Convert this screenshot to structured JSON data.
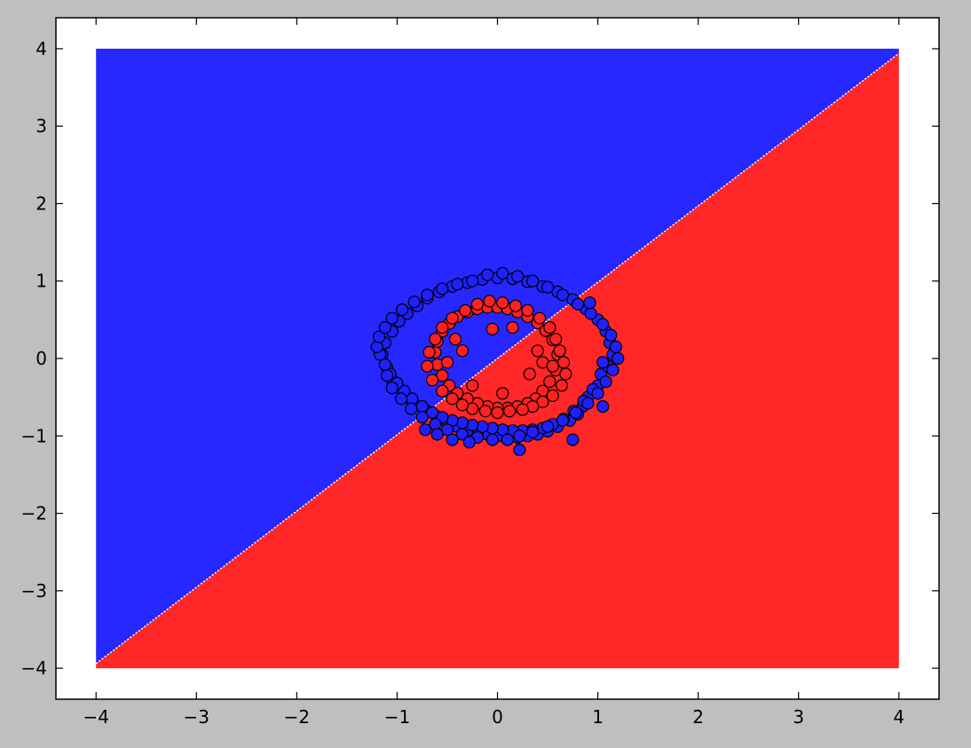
{
  "chart_data": {
    "type": "scatter",
    "title": "",
    "xlabel": "",
    "ylabel": "",
    "xlim": [
      -4.4,
      4.4
    ],
    "ylim": [
      -4.4,
      4.4
    ],
    "x_ticks": [
      -4,
      -3,
      -2,
      -1,
      0,
      1,
      2,
      3,
      4
    ],
    "y_ticks": [
      -4,
      -3,
      -2,
      -1,
      0,
      1,
      2,
      3,
      4
    ],
    "x_tick_labels": [
      "−4",
      "−3",
      "−2",
      "−1",
      "0",
      "1",
      "2",
      "3",
      "4"
    ],
    "y_tick_labels": [
      "−4",
      "−3",
      "−2",
      "−1",
      "0",
      "1",
      "2",
      "3",
      "4"
    ],
    "grid": false,
    "decision_region": {
      "extent": [
        -4,
        4,
        -4,
        4
      ],
      "boundary": {
        "slope": 0.985,
        "intercept": 0.0
      },
      "above_class": "blue",
      "below_class": "red"
    },
    "colors": {
      "blue_region": "#2727ff",
      "red_region": "#ff2727",
      "blue_point": "#2020ff",
      "red_point": "#ff2020",
      "point_edge": "#000000",
      "boundary": "#ffffff",
      "figure_background": "#bfbfbf",
      "axes_background": "#ffffff"
    },
    "series": [
      {
        "class": "outer-ring",
        "color": "blue",
        "x": [
          1.03,
          1.0,
          0.9,
          0.85,
          0.8,
          0.72,
          0.6,
          0.5,
          0.4,
          0.3,
          0.2,
          0.1,
          0.0,
          -0.1,
          -0.2,
          -0.3,
          -0.4,
          -0.5,
          -0.6,
          -0.72,
          -0.85,
          -0.95,
          -1.05,
          -1.1,
          -1.15,
          -1.12,
          -1.05,
          -0.98,
          -0.9,
          -0.8,
          -0.7,
          -0.58,
          -0.45,
          -0.3,
          -0.15,
          0.0,
          0.15,
          0.3,
          0.45,
          0.6,
          0.75,
          0.88,
          1.0,
          1.08,
          1.12,
          1.15,
          1.1,
          1.05,
          0.95,
          0.86,
          0.76,
          0.66,
          0.55,
          0.45,
          0.35,
          0.25,
          0.15,
          0.05,
          -0.05,
          -0.15,
          -0.25,
          -0.35,
          -0.45,
          -0.55,
          -0.65,
          -0.75,
          -0.85,
          -0.93,
          -1.0,
          -1.07,
          -1.12,
          -1.17,
          -1.2,
          -1.18,
          -1.12,
          -1.05,
          -0.95,
          -0.83,
          -0.7,
          -0.55,
          -0.4,
          -0.25,
          -0.1,
          0.05,
          0.2,
          0.35,
          0.5,
          0.65,
          0.8,
          0.93,
          1.05,
          1.13,
          1.18,
          1.2,
          1.15,
          1.08,
          1.0,
          0.9,
          0.78,
          0.65,
          0.5,
          0.35,
          0.22,
          0.1,
          -0.05,
          -0.2,
          -0.35,
          -0.5,
          -0.62,
          -0.75,
          -0.86,
          -0.96,
          -1.05,
          -1.1,
          -0.72,
          -0.6,
          -0.45,
          -0.28,
          0.22,
          0.75,
          1.05,
          0.92
        ],
        "y": [
          -0.2,
          -0.35,
          -0.5,
          -0.62,
          -0.72,
          -0.8,
          -0.88,
          -0.94,
          -0.98,
          -1.0,
          -1.02,
          -1.02,
          -1.0,
          -0.98,
          -0.96,
          -0.93,
          -0.88,
          -0.82,
          -0.75,
          -0.66,
          -0.55,
          -0.42,
          -0.28,
          -0.12,
          0.05,
          0.2,
          0.35,
          0.48,
          0.58,
          0.68,
          0.78,
          0.86,
          0.93,
          0.98,
          1.02,
          1.04,
          1.03,
          0.99,
          0.93,
          0.86,
          0.76,
          0.64,
          0.5,
          0.35,
          0.2,
          0.05,
          -0.1,
          -0.05,
          -0.4,
          -0.55,
          -0.68,
          -0.78,
          -0.85,
          -0.9,
          -0.92,
          -0.93,
          -0.93,
          -0.92,
          -0.9,
          -0.88,
          -0.86,
          -0.83,
          -0.8,
          -0.76,
          -0.7,
          -0.62,
          -0.52,
          -0.42,
          -0.32,
          -0.2,
          -0.08,
          0.05,
          0.15,
          0.28,
          0.4,
          0.52,
          0.63,
          0.73,
          0.82,
          0.9,
          0.96,
          1.0,
          1.08,
          1.1,
          1.06,
          1.0,
          0.92,
          0.82,
          0.7,
          0.58,
          0.44,
          0.3,
          0.15,
          0.0,
          -0.15,
          -0.3,
          -0.45,
          -0.58,
          -0.7,
          -0.8,
          -0.88,
          -0.95,
          -1.0,
          -1.05,
          -1.05,
          -1.02,
          -0.98,
          -0.92,
          -0.85,
          -0.76,
          -0.65,
          -0.52,
          -0.38,
          -0.22,
          -0.92,
          -0.98,
          -1.05,
          -1.08,
          -1.18,
          -1.05,
          -0.62,
          0.72
        ]
      },
      {
        "class": "inner-ring",
        "color": "red",
        "x": [
          0.6,
          0.58,
          0.52,
          0.45,
          0.38,
          0.3,
          0.2,
          0.1,
          0.0,
          -0.1,
          -0.2,
          -0.3,
          -0.4,
          -0.48,
          -0.55,
          -0.6,
          -0.62,
          -0.6,
          -0.55,
          -0.48,
          -0.4,
          -0.3,
          -0.2,
          -0.1,
          0.0,
          0.1,
          0.2,
          0.3,
          0.4,
          0.48,
          0.55,
          0.62,
          0.66,
          0.68,
          0.64,
          0.55,
          0.45,
          0.35,
          0.25,
          0.12,
          0.0,
          -0.12,
          -0.25,
          -0.35,
          -0.45,
          -0.55,
          -0.65,
          -0.7,
          -0.68,
          -0.62,
          -0.55,
          -0.45,
          -0.32,
          -0.2,
          -0.08,
          0.05,
          0.18,
          0.3,
          0.42,
          0.52,
          0.58,
          0.4,
          0.32,
          0.45,
          0.55,
          -0.35,
          -0.42,
          -0.5,
          -0.25,
          0.15,
          0.05,
          -0.05
        ],
        "y": [
          0.05,
          -0.15,
          -0.3,
          -0.42,
          -0.52,
          -0.58,
          -0.62,
          -0.64,
          -0.64,
          -0.62,
          -0.58,
          -0.52,
          -0.45,
          -0.35,
          -0.22,
          -0.08,
          0.08,
          0.22,
          0.35,
          0.45,
          0.54,
          0.6,
          0.64,
          0.66,
          0.66,
          0.64,
          0.6,
          0.54,
          0.46,
          0.36,
          0.24,
          0.1,
          -0.05,
          -0.2,
          -0.35,
          -0.48,
          -0.56,
          -0.62,
          -0.66,
          -0.68,
          -0.7,
          -0.68,
          -0.65,
          -0.6,
          -0.52,
          -0.42,
          -0.28,
          -0.1,
          0.08,
          0.25,
          0.4,
          0.52,
          0.62,
          0.7,
          0.74,
          0.72,
          0.68,
          0.62,
          0.52,
          0.4,
          0.25,
          0.1,
          -0.2,
          -0.05,
          -0.1,
          0.1,
          0.25,
          -0.05,
          -0.35,
          0.4,
          -0.45,
          0.38
        ]
      }
    ]
  }
}
